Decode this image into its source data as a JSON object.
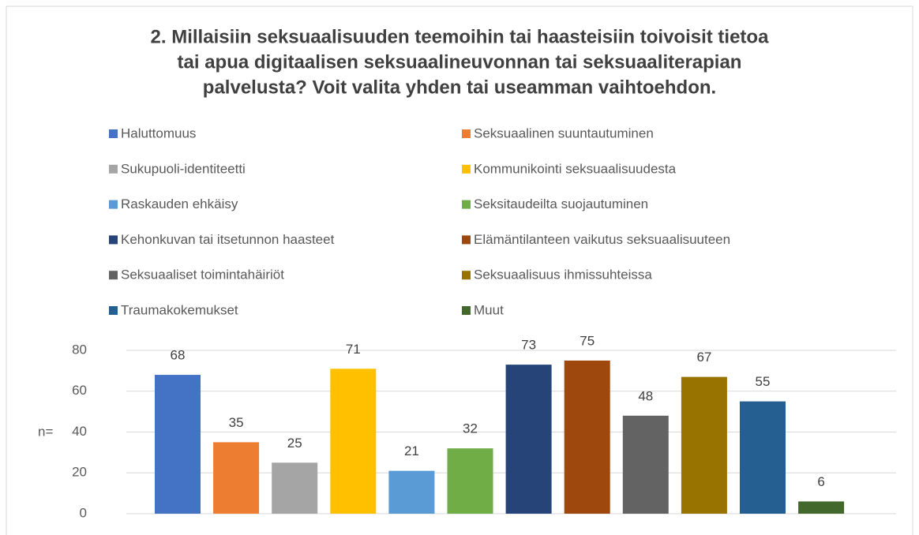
{
  "chart_data": {
    "type": "bar",
    "title": [
      "2. Millaisiin seksuaalisuuden teemoihin tai haasteisiin toivoisit tietoa",
      "tai apua digitaalisen seksuaalineuvonnan tai seksuaaliterapian",
      "palvelusta? Voit valita yhden tai useamman vaihtoehdon."
    ],
    "y_label": "n=",
    "categories": [
      "Haluttomuus",
      "Seksuaalinen suuntautuminen",
      "Sukupuoli-identiteetti",
      "Kommunikointi seksuaalisuudesta",
      "Raskauden ehkäisy",
      "Seksitaudeilta suojautuminen",
      "Kehonkuvan tai itsetunnon haasteet",
      "Elämäntilanteen vaikutus seksuaalisuuteen",
      "Seksuaaliset toimintahäiriöt",
      "Seksuaalisuus ihmissuhteissa",
      "Traumakokemukset",
      "Muut"
    ],
    "values": [
      68,
      35,
      25,
      71,
      21,
      32,
      73,
      75,
      48,
      67,
      55,
      6
    ],
    "colors": [
      "#4472c4",
      "#ed7d31",
      "#a5a5a5",
      "#ffc000",
      "#5b9bd5",
      "#70ad47",
      "#264478",
      "#9e480e",
      "#636363",
      "#997300",
      "#255e91",
      "#43682b"
    ],
    "ylim": [
      0,
      80
    ],
    "yticks": [
      0,
      20,
      40,
      60,
      80
    ],
    "grid": true,
    "legend": "top"
  }
}
